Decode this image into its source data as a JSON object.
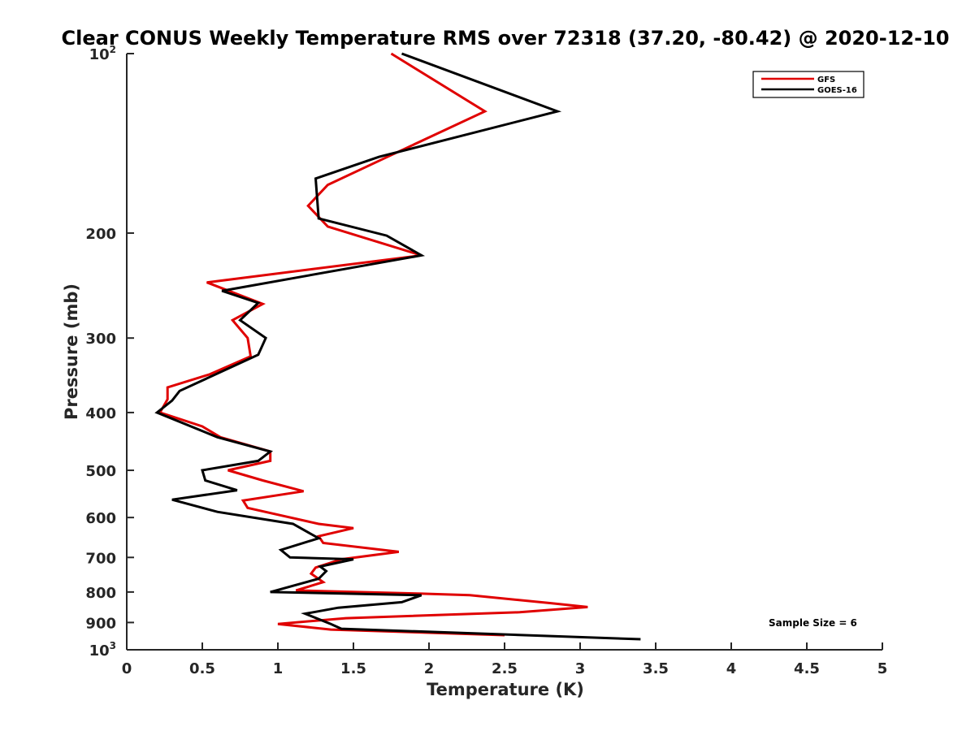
{
  "chart_data": {
    "type": "line",
    "title": "Clear CONUS Weekly Temperature RMS over 72318 (37.20, -80.42) @ 2020-12-10",
    "xlabel": "Temperature (K)",
    "ylabel": "Pressure (mb)",
    "xlim": [
      0,
      5
    ],
    "ylim": [
      100,
      1000
    ],
    "yscale": "log",
    "y_reversed": true,
    "grid": false,
    "legend_position": "top-right",
    "annotation": "Sample Size = 6",
    "x_ticks": [
      "0",
      "0.5",
      "1",
      "1.5",
      "2",
      "2.5",
      "3",
      "3.5",
      "4",
      "4.5",
      "5"
    ],
    "y_ticks": [
      {
        "value": 100,
        "base": "10",
        "exp": "2"
      },
      {
        "value": 200,
        "label": "200"
      },
      {
        "value": 300,
        "label": "300"
      },
      {
        "value": 400,
        "label": "400"
      },
      {
        "value": 500,
        "label": "500"
      },
      {
        "value": 600,
        "label": "600"
      },
      {
        "value": 700,
        "label": "700"
      },
      {
        "value": 800,
        "label": "800"
      },
      {
        "value": 900,
        "label": "900"
      },
      {
        "value": 1000,
        "base": "10",
        "exp": "3"
      }
    ],
    "series": [
      {
        "name": "GFS",
        "color": "#e00000",
        "points": [
          [
            1.75,
            100
          ],
          [
            2.37,
            125
          ],
          [
            1.7,
            150
          ],
          [
            1.33,
            166
          ],
          [
            1.2,
            180
          ],
          [
            1.33,
            195
          ],
          [
            1.95,
            218
          ],
          [
            0.53,
            242
          ],
          [
            0.9,
            263
          ],
          [
            0.7,
            280
          ],
          [
            0.8,
            300
          ],
          [
            0.82,
            322
          ],
          [
            0.55,
            345
          ],
          [
            0.27,
            363
          ],
          [
            0.27,
            380
          ],
          [
            0.22,
            400
          ],
          [
            0.5,
            422
          ],
          [
            0.62,
            440
          ],
          [
            0.95,
            465
          ],
          [
            0.95,
            482
          ],
          [
            0.67,
            500
          ],
          [
            0.9,
            520
          ],
          [
            1.17,
            542
          ],
          [
            0.77,
            562
          ],
          [
            0.8,
            578
          ],
          [
            1.27,
            615
          ],
          [
            1.5,
            625
          ],
          [
            1.27,
            645
          ],
          [
            1.3,
            662
          ],
          [
            1.8,
            685
          ],
          [
            1.42,
            705
          ],
          [
            1.25,
            728
          ],
          [
            1.22,
            745
          ],
          [
            1.3,
            770
          ],
          [
            1.12,
            795
          ],
          [
            1.95,
            805
          ],
          [
            2.27,
            810
          ],
          [
            2.8,
            835
          ],
          [
            3.05,
            848
          ],
          [
            2.6,
            865
          ],
          [
            1.45,
            885
          ],
          [
            1.0,
            905
          ],
          [
            1.35,
            925
          ],
          [
            2.5,
            945
          ]
        ]
      },
      {
        "name": "GOES-16",
        "color": "#000000",
        "points": [
          [
            1.82,
            100
          ],
          [
            2.85,
            125
          ],
          [
            1.67,
            149
          ],
          [
            1.25,
            162
          ],
          [
            1.27,
            189
          ],
          [
            1.72,
            202
          ],
          [
            1.95,
            218
          ],
          [
            0.63,
            250
          ],
          [
            0.87,
            262
          ],
          [
            0.75,
            280
          ],
          [
            0.92,
            300
          ],
          [
            0.87,
            320
          ],
          [
            0.35,
            368
          ],
          [
            0.3,
            382
          ],
          [
            0.2,
            400
          ],
          [
            0.6,
            440
          ],
          [
            0.95,
            465
          ],
          [
            0.87,
            482
          ],
          [
            0.5,
            500
          ],
          [
            0.52,
            520
          ],
          [
            0.73,
            540
          ],
          [
            0.3,
            560
          ],
          [
            0.6,
            587
          ],
          [
            1.1,
            615
          ],
          [
            1.27,
            650
          ],
          [
            1.02,
            680
          ],
          [
            1.08,
            700
          ],
          [
            1.5,
            705
          ],
          [
            1.28,
            725
          ],
          [
            1.32,
            738
          ],
          [
            1.27,
            760
          ],
          [
            0.95,
            800
          ],
          [
            1.95,
            810
          ],
          [
            1.82,
            832
          ],
          [
            1.4,
            850
          ],
          [
            1.18,
            870
          ],
          [
            1.35,
            905
          ],
          [
            1.42,
            922
          ],
          [
            3.4,
            960
          ]
        ]
      }
    ]
  }
}
